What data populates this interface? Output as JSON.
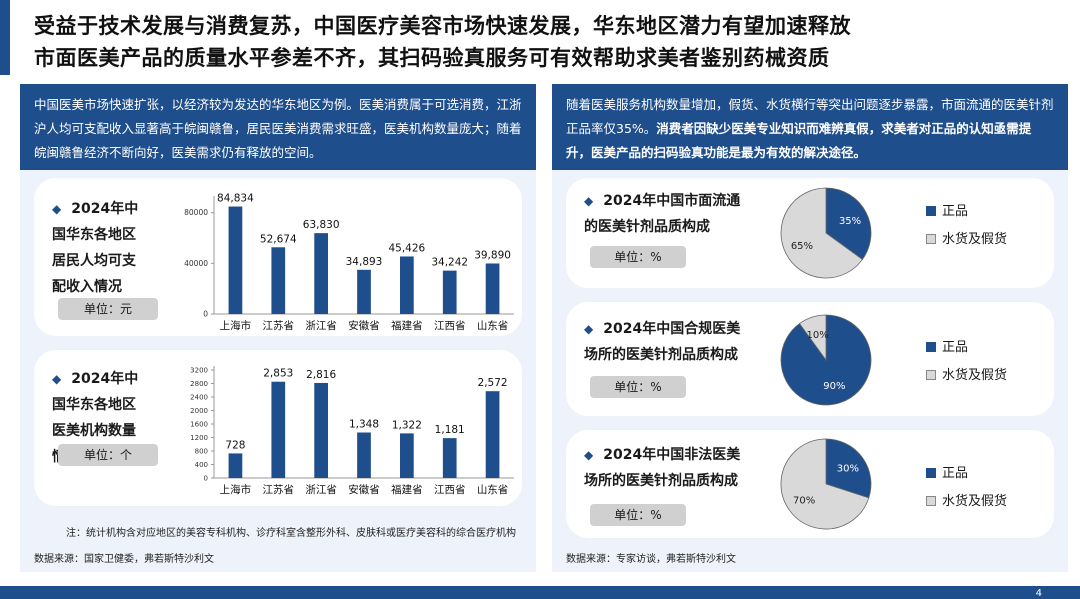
{
  "header": {
    "title_line1": "受益于技术发展与消费复苏，中国医疗美容市场快速发展，华东地区潜力有望加速释放",
    "title_line2": "市面医美产品的质量水平参差不齐，其扫码验真服务可有效帮助求美者鉴别药械资质"
  },
  "left": {
    "intro": "中国医美市场快速扩张，以经济较为发达的华东地区为例。医美消费属于可选消费，江浙沪人均可支配收入显著高于皖闽赣鲁，居民医美消费需求旺盛，医美机构数量庞大；随着皖闽赣鲁经济不断向好，医美需求仍有释放的空间。",
    "card1_title": "2024年中国华东各地区居民人均可支配收入情况",
    "card1_unit": "单位：元",
    "card2_title": "2024年中国华东各地区医美机构数量情况",
    "card2_unit": "单位：个",
    "note": "注：统计机构含对应地区的美容专科机构、诊疗科室含整形外科、皮肤科或医疗美容科的综合医疗机构",
    "source": "数据来源：国家卫健委，弗若斯特沙利文"
  },
  "right": {
    "intro_part1": "随着医美服务机构数量增加，假货、水货横行等突出问题逐步暴露，市面流通的医美针剂正品率仅35%。",
    "intro_part2": "消费者因缺少医美专业知识而难辨真假，求美者对正品的认知亟需提升，医美产品的扫码验真功能是最为有效的解决途径。",
    "pie1_title": "2024年中国市面流通的医美针剂品质构成",
    "pie2_title": "2024年中国合规医美场所的医美针剂品质构成",
    "pie3_title": "2024年中国非法医美场所的医美针剂品质构成",
    "unit": "单位：%",
    "legend_genuine": "正品",
    "legend_fake": "水货及假货",
    "source": "数据来源：专家访谈，弗若斯特沙利文"
  },
  "page_number": "4",
  "colors": {
    "navy": "#1f4e8c",
    "bar": "#1f4e8c",
    "pie_fake": "#d9d9d9",
    "panel_bg": "#eef3fb"
  },
  "chart_data": [
    {
      "type": "bar",
      "title": "2024年中国华东各地区居民人均可支配收入情况",
      "categories": [
        "上海市",
        "江苏省",
        "浙江省",
        "安徽省",
        "福建省",
        "江西省",
        "山东省"
      ],
      "values": [
        84834,
        52674,
        63830,
        34893,
        45426,
        34242,
        39890
      ],
      "labels": [
        "84,834",
        "52,674",
        "63,830",
        "34,893",
        "45,426",
        "34,242",
        "39,890"
      ],
      "ylim": [
        0,
        90000
      ],
      "yticks": [
        0,
        40000,
        80000
      ],
      "ytick_labels": [
        "0",
        "40000",
        "80000"
      ]
    },
    {
      "type": "bar",
      "title": "2024年中国华东各地区医美机构数量情况",
      "categories": [
        "上海市",
        "江苏省",
        "浙江省",
        "安徽省",
        "福建省",
        "江西省",
        "山东省"
      ],
      "values": [
        728,
        2853,
        2816,
        1348,
        1322,
        1181,
        2572
      ],
      "labels": [
        "728",
        "2,853",
        "2,816",
        "1,348",
        "1,322",
        "1,181",
        "2,572"
      ],
      "ylim": [
        0,
        3200
      ],
      "yticks": [
        0,
        400,
        800,
        1200,
        1600,
        2000,
        2400,
        2800,
        3200
      ],
      "ytick_labels": [
        "0",
        "400",
        "800",
        "1200",
        "1600",
        "2000",
        "2400",
        "2800",
        "3200"
      ]
    },
    {
      "type": "pie",
      "title": "2024年中国市面流通的医美针剂品质构成",
      "categories": [
        "正品",
        "水货及假货"
      ],
      "values": [
        35,
        65
      ],
      "labels": [
        "35%",
        "65%"
      ]
    },
    {
      "type": "pie",
      "title": "2024年中国合规医美场所的医美针剂品质构成",
      "categories": [
        "正品",
        "水货及假货"
      ],
      "values": [
        90,
        10
      ],
      "labels": [
        "90%",
        "10%"
      ]
    },
    {
      "type": "pie",
      "title": "2024年中国非法医美场所的医美针剂品质构成",
      "categories": [
        "正品",
        "水货及假货"
      ],
      "values": [
        30,
        70
      ],
      "labels": [
        "30%",
        "70%"
      ]
    }
  ]
}
